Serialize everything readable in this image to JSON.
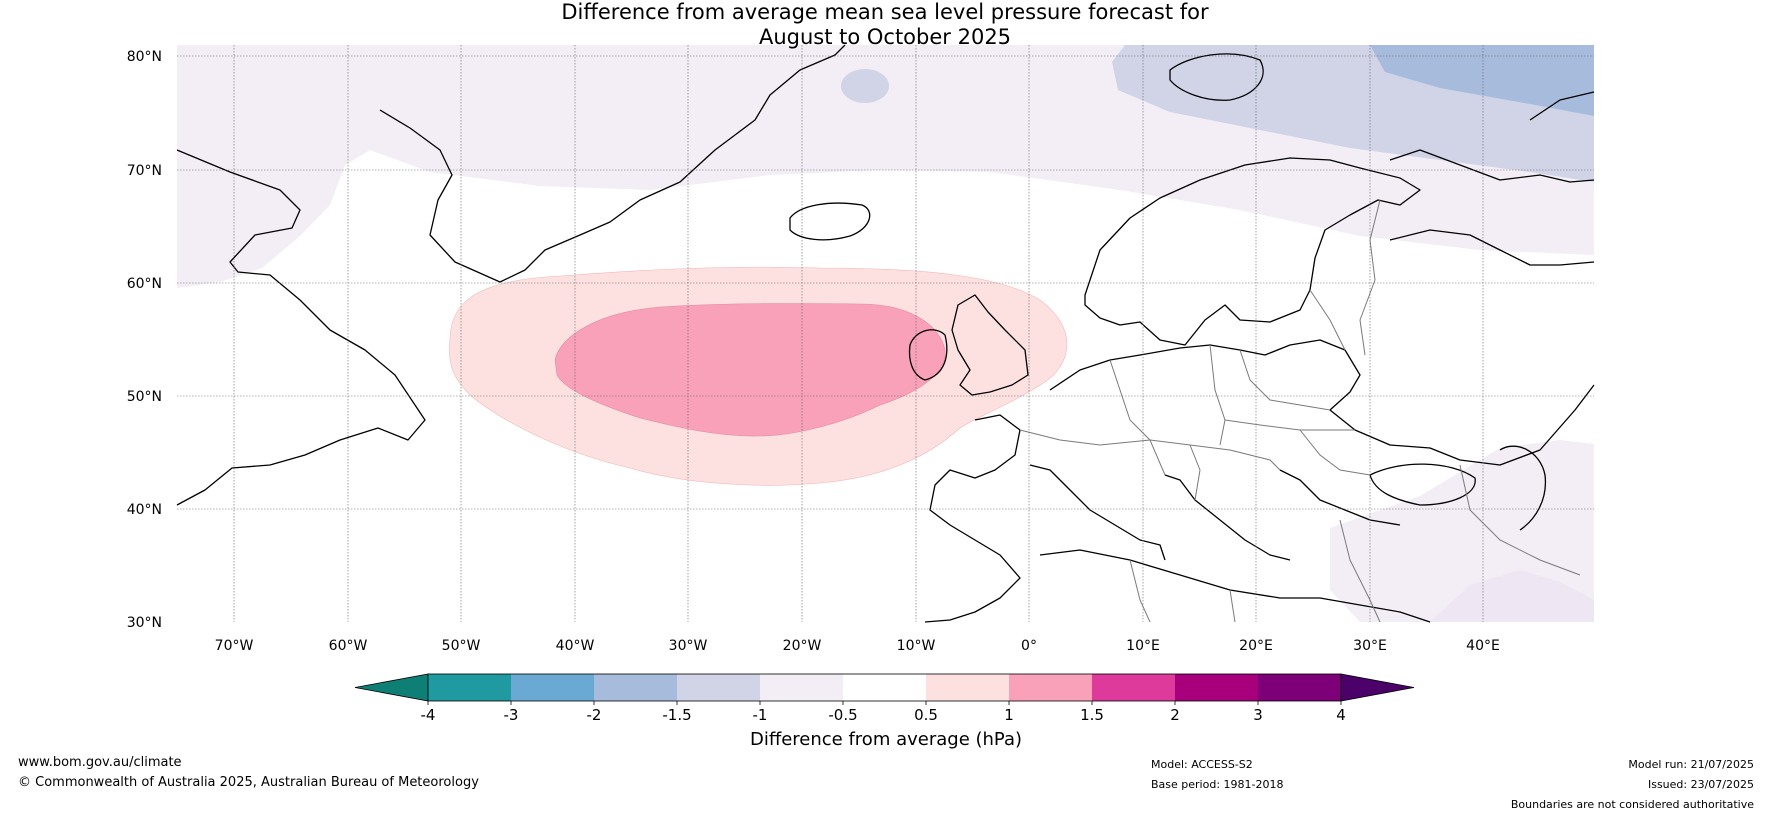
{
  "title": {
    "line1": "Difference from average mean sea level pressure forecast for",
    "line2": "August to October 2025"
  },
  "map": {
    "lat_labels": [
      "80°N",
      "70°N",
      "60°N",
      "50°N",
      "40°N",
      "30°N"
    ],
    "lon_labels": [
      "70°W",
      "60°W",
      "50°W",
      "40°W",
      "30°W",
      "20°W",
      "10°W",
      "0°",
      "10°E",
      "20°E",
      "30°E",
      "40°E"
    ]
  },
  "colorbar": {
    "ticks": [
      "-4",
      "-3",
      "-2",
      "-1.5",
      "-1",
      "-0.5",
      "0.5",
      "1",
      "1.5",
      "2",
      "3",
      "4"
    ],
    "colors": [
      "#0e7f74",
      "#1f9aa0",
      "#6aa9d3",
      "#a7bbdc",
      "#d1d3e7",
      "#f3edf6",
      "#ffffff",
      "#fde1e1",
      "#f8a1b9",
      "#dd3a9b",
      "#a8007c",
      "#7d0078",
      "#4b006a"
    ],
    "label": "Difference from average (hPa)"
  },
  "footer": {
    "website": "www.bom.gov.au/climate",
    "copyright": "© Commonwealth of Australia 2025, Australian Bureau of Meteorology",
    "model": "Model: ACCESS-S2",
    "base_period": "Base period: 1981-2018",
    "model_run": "Model run: 21/07/2025",
    "issued": "Issued: 23/07/2025",
    "disclaimer": "Boundaries are not considered authoritative"
  }
}
